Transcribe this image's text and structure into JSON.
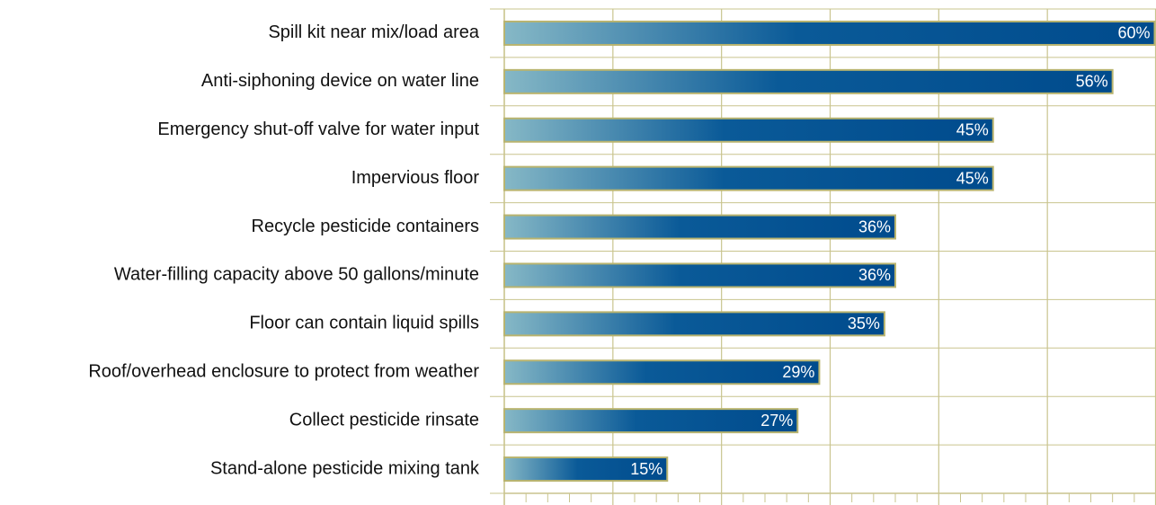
{
  "chart_data": {
    "type": "bar",
    "orientation": "horizontal",
    "categories": [
      "Spill kit near mix/load area",
      "Anti-siphoning device on water line",
      "Emergency shut-off valve for water input",
      "Impervious floor",
      "Recycle pesticide containers",
      "Water-filling capacity above 50 gallons/minute",
      "Floor can contain liquid spills",
      "Roof/overhead enclosure to protect from weather",
      "Collect pesticide rinsate",
      "Stand-alone pesticide mixing tank"
    ],
    "values": [
      60,
      56,
      45,
      45,
      36,
      36,
      35,
      29,
      27,
      15
    ],
    "value_labels": [
      "60%",
      "56%",
      "45%",
      "45%",
      "36%",
      "36%",
      "35%",
      "29%",
      "27%",
      "15%"
    ],
    "color": "#004b8d",
    "xlim": [
      0,
      60
    ],
    "xticks": [
      0,
      10,
      20,
      30,
      40,
      50,
      60
    ],
    "minor_xticks": [
      2,
      4,
      6,
      8,
      12,
      14,
      16,
      18,
      22,
      24,
      26,
      28,
      32,
      34,
      36,
      38,
      42,
      44,
      46,
      48,
      52,
      54,
      56,
      58
    ],
    "grid": true
  }
}
